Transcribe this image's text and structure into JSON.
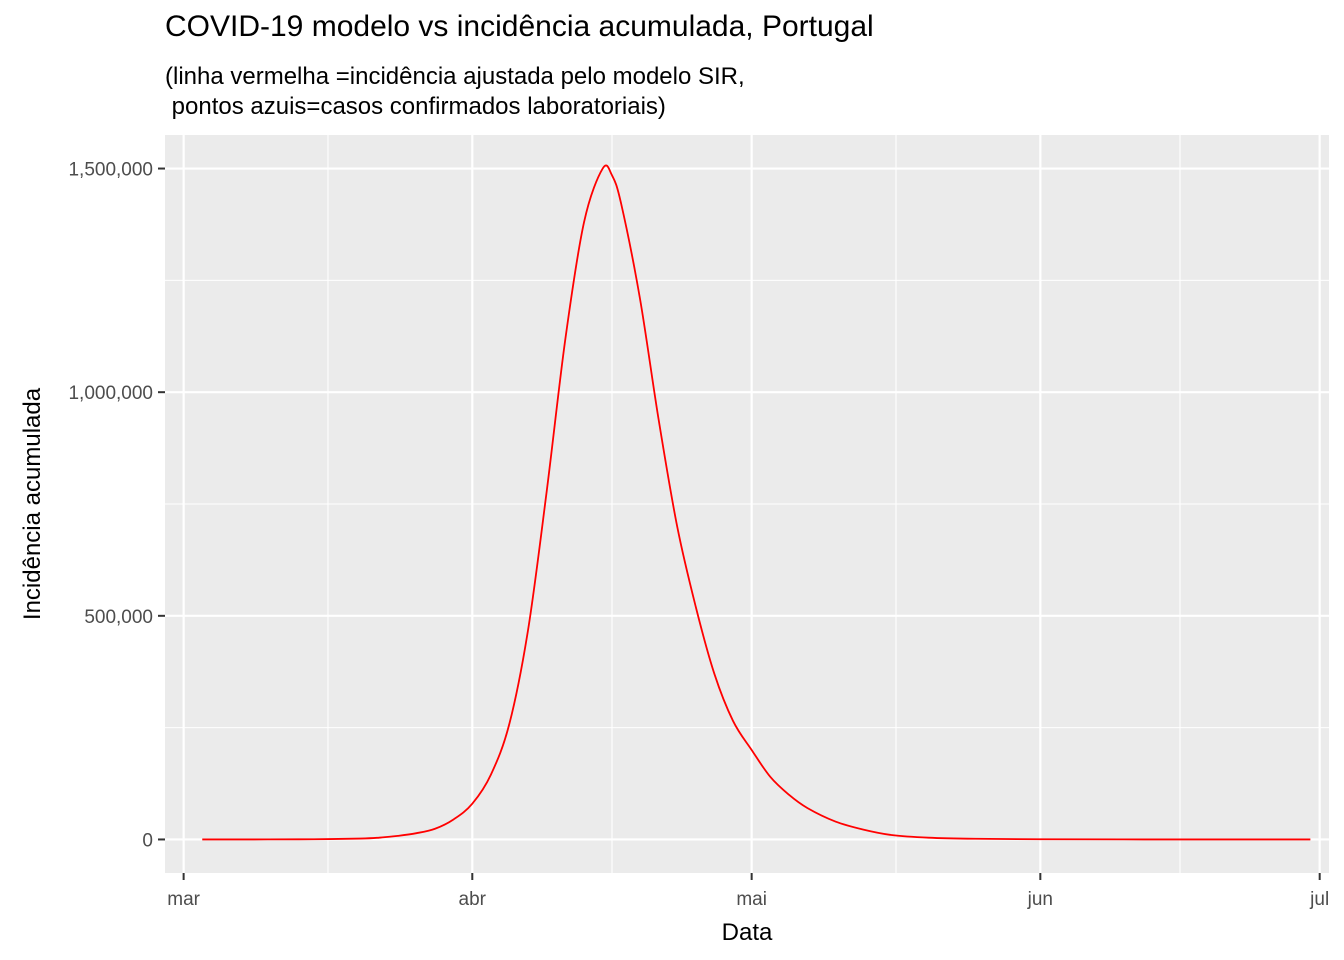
{
  "chart_data": {
    "type": "line",
    "title": "COVID-19 modelo vs incidência acumulada, Portugal",
    "subtitle_lines": [
      "(linha vermelha =incidência ajustada pelo modelo SIR,",
      " pontos azuis=casos confirmados laboratoriais)"
    ],
    "xlabel": "Data",
    "ylabel": "Incidência acumulada",
    "x_range": [
      "2020-02-28",
      "2020-07-02"
    ],
    "x_ticks": [
      {
        "date": "2020-03-01",
        "label": "mar"
      },
      {
        "date": "2020-04-01",
        "label": "abr"
      },
      {
        "date": "2020-05-01",
        "label": "mai"
      },
      {
        "date": "2020-06-01",
        "label": "jun"
      },
      {
        "date": "2020-07-01",
        "label": "jul"
      }
    ],
    "ylim": [
      -75000,
      1575000
    ],
    "y_ticks": [
      {
        "value": 0,
        "label": "0"
      },
      {
        "value": 500000,
        "label": "500,000"
      },
      {
        "value": 1000000,
        "label": "1,000,000"
      },
      {
        "value": 1500000,
        "label": "1,500,000"
      }
    ],
    "grid": true,
    "background": "#ebebeb",
    "series": [
      {
        "color": "#ff0000",
        "points": [
          [
            "2020-03-03",
            0
          ],
          [
            "2020-03-10",
            100
          ],
          [
            "2020-03-15",
            500
          ],
          [
            "2020-03-20",
            2000
          ],
          [
            "2020-03-22",
            4000
          ],
          [
            "2020-03-24",
            8000
          ],
          [
            "2020-03-26",
            14000
          ],
          [
            "2020-03-28",
            24000
          ],
          [
            "2020-03-30",
            45000
          ],
          [
            "2020-04-01",
            80000
          ],
          [
            "2020-04-03",
            145000
          ],
          [
            "2020-04-05",
            260000
          ],
          [
            "2020-04-07",
            470000
          ],
          [
            "2020-04-09",
            780000
          ],
          [
            "2020-04-11",
            1120000
          ],
          [
            "2020-04-13",
            1380000
          ],
          [
            "2020-04-15",
            1500000
          ],
          [
            "2020-04-16",
            1485000
          ],
          [
            "2020-04-17",
            1420000
          ],
          [
            "2020-04-19",
            1210000
          ],
          [
            "2020-04-21",
            940000
          ],
          [
            "2020-04-23",
            700000
          ],
          [
            "2020-04-25",
            520000
          ],
          [
            "2020-04-27",
            370000
          ],
          [
            "2020-04-29",
            265000
          ],
          [
            "2020-05-01",
            200000
          ],
          [
            "2020-05-03",
            140000
          ],
          [
            "2020-05-05",
            100000
          ],
          [
            "2020-05-07",
            70000
          ],
          [
            "2020-05-10",
            40000
          ],
          [
            "2020-05-13",
            22000
          ],
          [
            "2020-05-16",
            10000
          ],
          [
            "2020-05-20",
            4000
          ],
          [
            "2020-05-25",
            1500
          ],
          [
            "2020-06-01",
            400
          ],
          [
            "2020-06-10",
            100
          ],
          [
            "2020-06-20",
            20
          ],
          [
            "2020-06-30",
            0
          ]
        ]
      }
    ]
  }
}
